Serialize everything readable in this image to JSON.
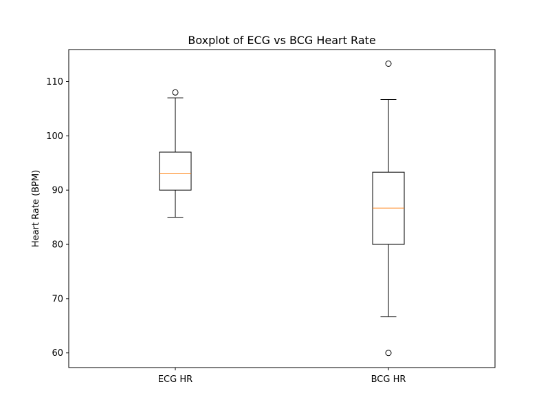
{
  "chart_data": {
    "type": "boxplot",
    "title": "Boxplot of ECG vs BCG Heart Rate",
    "xlabel": "",
    "ylabel": "Heart Rate (BPM)",
    "ylim": [
      57.3,
      115.9
    ],
    "yticks": [
      60,
      70,
      80,
      90,
      100,
      110
    ],
    "categories": [
      "ECG HR",
      "BCG HR"
    ],
    "boxes": [
      {
        "label": "ECG HR",
        "whisker_low": 85,
        "q1": 90,
        "median": 93,
        "q3": 97,
        "whisker_high": 107,
        "outliers": [
          108
        ]
      },
      {
        "label": "BCG HR",
        "whisker_low": 66.7,
        "q1": 80,
        "median": 86.7,
        "q3": 93.3,
        "whisker_high": 106.7,
        "outliers": [
          60,
          113.3
        ]
      }
    ],
    "grid": false,
    "colors": {
      "box": "#000000",
      "median": "#ff7f0e",
      "outlier": "#000000"
    }
  }
}
